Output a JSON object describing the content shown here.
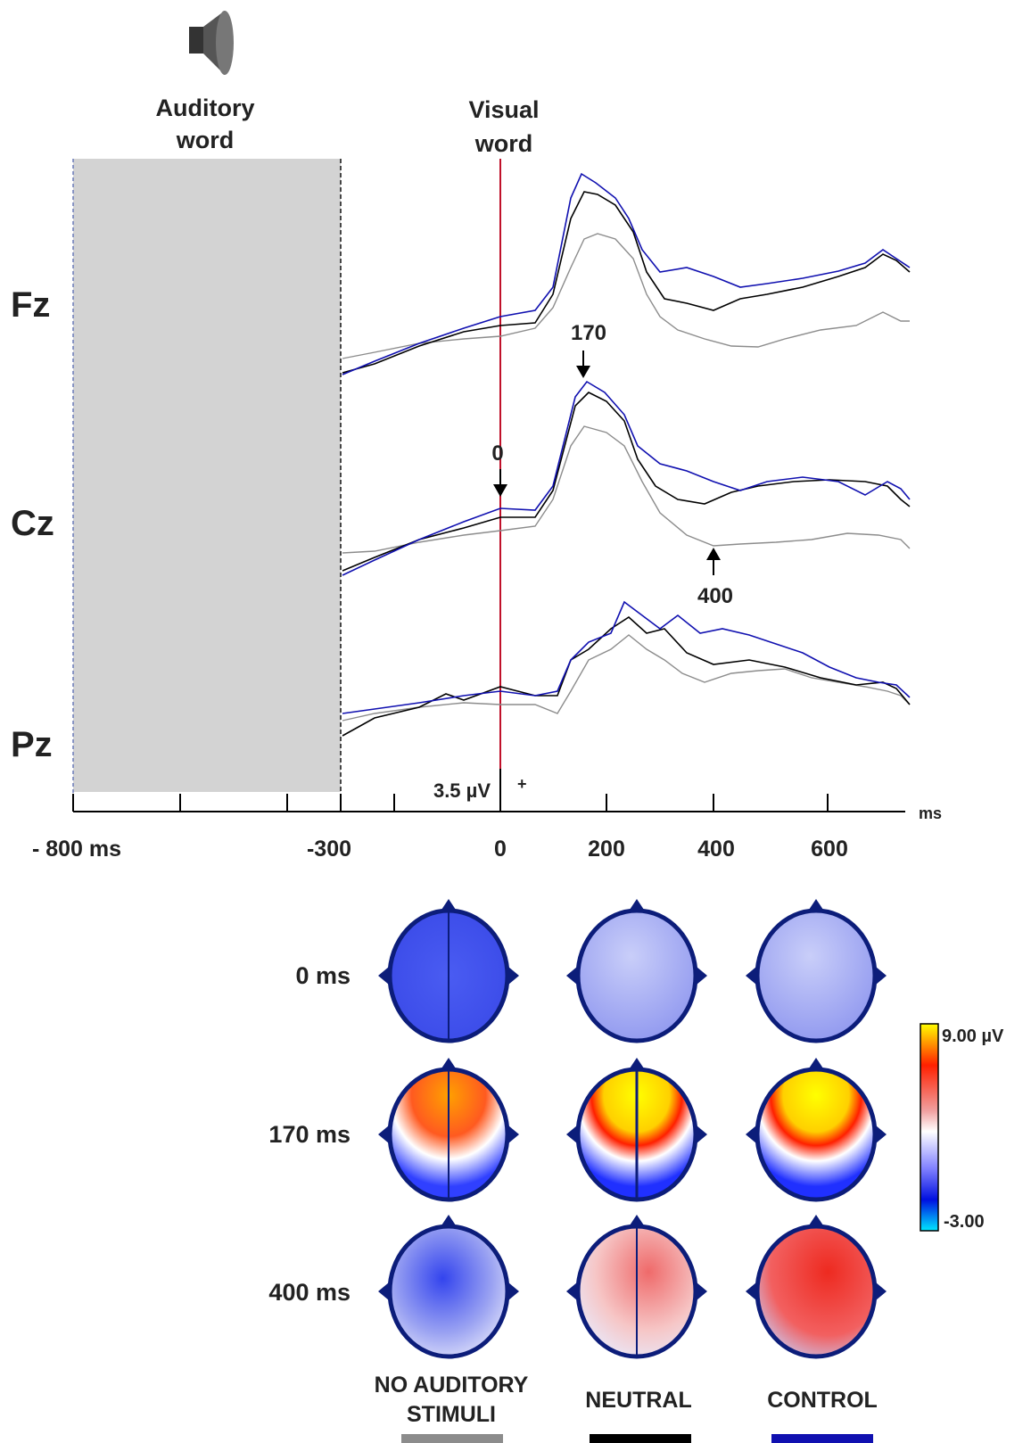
{
  "header": {
    "auditory_line1": "Auditory",
    "auditory_line2": "word",
    "visual_line1": "Visual",
    "visual_line2": "word"
  },
  "channels": [
    "Fz",
    "Cz",
    "Pz"
  ],
  "axis": {
    "unit": "ms",
    "ticks": [
      "- 800 ms",
      "-300",
      "0",
      "200",
      "400",
      "600"
    ]
  },
  "scale_bar": {
    "label": "3.5 µV",
    "polarity": "+"
  },
  "annotations": {
    "peak_early": "170",
    "onset": "0",
    "late": "400"
  },
  "topomaps": {
    "rows": [
      "0  ms",
      "170 ms",
      "400 ms"
    ],
    "colorbar": {
      "max": "9.00 µV",
      "min": "-3.00"
    }
  },
  "legend": {
    "conditions": [
      {
        "line1": "NO AUDITORY",
        "line2": "STIMULI",
        "color": "#8c8c8c"
      },
      {
        "line1": "NEUTRAL",
        "line2": "",
        "color": "#000000"
      },
      {
        "line1": "CONTROL",
        "line2": "",
        "color": "#1010b0"
      }
    ]
  },
  "colors": {
    "gray_condition": "#8c8c8c",
    "neutral": "#000000",
    "control": "#1010b0",
    "auditory_window": "#d3d3d3",
    "visual_onset": "#c0102a",
    "head_outline": "#0c1d7a"
  }
}
